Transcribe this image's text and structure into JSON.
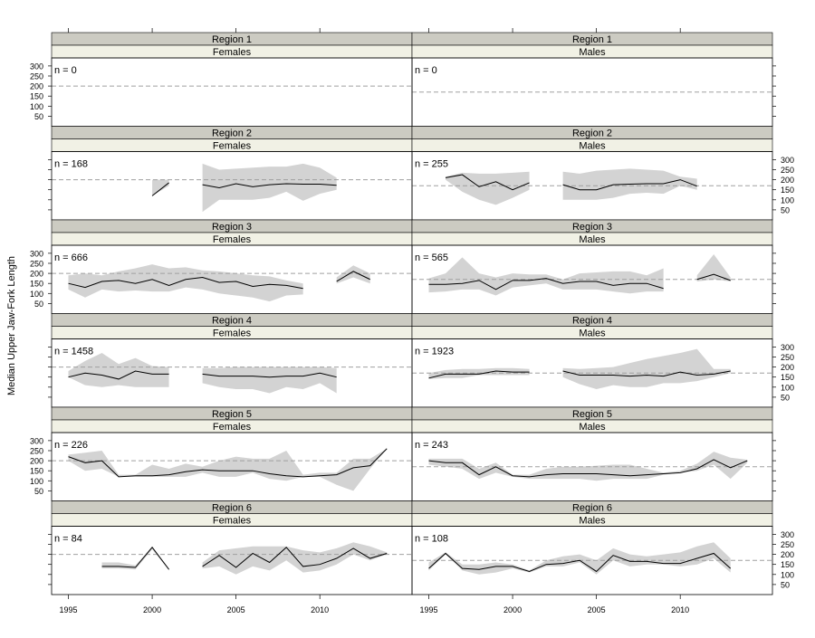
{
  "chart_data": {
    "type": "line",
    "ylabel": "Median Upper Jaw-Fork Length",
    "x_ticks": [
      1995,
      2000,
      2005,
      2010
    ],
    "y_ticks": [
      50,
      100,
      150,
      200,
      250,
      300
    ],
    "xlim": [
      1994,
      2015.5
    ],
    "ylim": [
      0,
      340
    ],
    "colors": {
      "strip_region": "#cccbc2",
      "strip_sex": "#f1f1e5",
      "band": "#d3d3d3",
      "line": "#000000",
      "reference": "#a0a0a0",
      "frame": "#000000"
    },
    "panels": [
      {
        "region": "Region 1",
        "sex": "Females",
        "n_label": "n = 0",
        "reference": 200,
        "segments": []
      },
      {
        "region": "Region 1",
        "sex": "Males",
        "n_label": "n = 0",
        "reference": 170,
        "segments": []
      },
      {
        "region": "Region 2",
        "sex": "Females",
        "n_label": "n = 168",
        "reference": 200,
        "segments": [
          {
            "x": [
              2000,
              2001
            ],
            "y": [
              120,
              185
            ],
            "lo": [
              120,
              170
            ],
            "hi": [
              200,
              200
            ]
          },
          {
            "x": [
              2003,
              2004,
              2005,
              2006,
              2007,
              2008,
              2009,
              2010,
              2011
            ],
            "y": [
              175,
              160,
              180,
              165,
              175,
              180,
              178,
              178,
              172
            ],
            "lo": [
              40,
              100,
              100,
              100,
              110,
              140,
              95,
              130,
              150
            ],
            "hi": [
              280,
              250,
              255,
              260,
              265,
              265,
              280,
              260,
              210
            ]
          }
        ]
      },
      {
        "region": "Region 2",
        "sex": "Males",
        "n_label": "n = 255",
        "reference": 170,
        "segments": [
          {
            "x": [
              1996,
              1997,
              1998,
              1999,
              2000,
              2001
            ],
            "y": [
              210,
              225,
              165,
              190,
              150,
              185
            ],
            "lo": [
              200,
              140,
              100,
              75,
              110,
              150
            ],
            "hi": [
              215,
              235,
              230,
              230,
              235,
              240
            ]
          },
          {
            "x": [
              2003,
              2004,
              2005,
              2006,
              2007,
              2008,
              2009,
              2010,
              2011
            ],
            "y": [
              175,
              150,
              150,
              175,
              178,
              180,
              180,
              200,
              168
            ],
            "lo": [
              100,
              100,
              100,
              110,
              130,
              135,
              130,
              170,
              150
            ],
            "hi": [
              240,
              230,
              245,
              250,
              255,
              250,
              245,
              215,
              205
            ]
          }
        ]
      },
      {
        "region": "Region 3",
        "sex": "Females",
        "n_label": "n = 666",
        "reference": 200,
        "segments": [
          {
            "x": [
              1995,
              1996,
              1997,
              1998,
              1999,
              2000,
              2001,
              2002,
              2003,
              2004,
              2005,
              2006,
              2007,
              2008,
              2009
            ],
            "y": [
              150,
              130,
              160,
              165,
              150,
              170,
              140,
              170,
              180,
              155,
              160,
              135,
              145,
              140,
              125
            ],
            "lo": [
              120,
              80,
              120,
              110,
              115,
              110,
              110,
              130,
              120,
              100,
              90,
              80,
              60,
              90,
              95
            ],
            "hi": [
              190,
              200,
              190,
              210,
              225,
              245,
              225,
              230,
              215,
              210,
              200,
              190,
              185,
              165,
              150
            ]
          },
          {
            "x": [
              2011,
              2012,
              2013
            ],
            "y": [
              160,
              210,
              170
            ],
            "lo": [
              150,
              180,
              150
            ],
            "hi": [
              180,
              240,
              200
            ]
          }
        ]
      },
      {
        "region": "Region 3",
        "sex": "Males",
        "n_label": "n = 565",
        "reference": 170,
        "segments": [
          {
            "x": [
              1995,
              1996,
              1997,
              1998,
              1999,
              2000,
              2001,
              2002,
              2003,
              2004,
              2005,
              2006,
              2007,
              2008,
              2009
            ],
            "y": [
              145,
              145,
              150,
              165,
              120,
              165,
              165,
              175,
              150,
              160,
              160,
              140,
              150,
              150,
              125
            ],
            "lo": [
              105,
              110,
              120,
              120,
              90,
              130,
              140,
              150,
              120,
              120,
              120,
              110,
              100,
              110,
              110
            ],
            "hi": [
              175,
              200,
              280,
              200,
              180,
              200,
              195,
              195,
              170,
              200,
              205,
              210,
              210,
              190,
              225
            ]
          },
          {
            "x": [
              2011,
              2012,
              2013
            ],
            "y": [
              170,
              195,
              165
            ],
            "lo": [
              160,
              170,
              160
            ],
            "hi": [
              190,
              295,
              180
            ]
          }
        ]
      },
      {
        "region": "Region 4",
        "sex": "Females",
        "n_label": "n = 1458",
        "reference": 200,
        "segments": [
          {
            "x": [
              1995,
              1996,
              1997,
              1998,
              1999,
              2000,
              2001
            ],
            "y": [
              150,
              170,
              160,
              140,
              180,
              165,
              165
            ],
            "lo": [
              150,
              110,
              100,
              110,
              100,
              100,
              100
            ],
            "hi": [
              180,
              230,
              270,
              215,
              245,
              205,
              200
            ]
          },
          {
            "x": [
              2003,
              2004,
              2005,
              2006,
              2007,
              2008,
              2009,
              2010,
              2011
            ],
            "y": [
              165,
              155,
              155,
              155,
              150,
              155,
              155,
              170,
              150
            ],
            "lo": [
              120,
              100,
              90,
              90,
              70,
              100,
              90,
              120,
              70
            ],
            "hi": [
              195,
              195,
              200,
              200,
              200,
              200,
              200,
              200,
              195
            ]
          }
        ]
      },
      {
        "region": "Region 4",
        "sex": "Males",
        "n_label": "n = 1923",
        "reference": 170,
        "segments": [
          {
            "x": [
              1995,
              1996,
              1997,
              1998,
              1999,
              2000,
              2001
            ],
            "y": [
              145,
              165,
              165,
              165,
              180,
              175,
              175
            ],
            "lo": [
              140,
              145,
              145,
              160,
              160,
              160,
              160
            ],
            "hi": [
              170,
              185,
              190,
              190,
              195,
              195,
              190
            ]
          },
          {
            "x": [
              2003,
              2004,
              2005,
              2006,
              2007,
              2008,
              2009,
              2010,
              2011,
              2012,
              2013
            ],
            "y": [
              180,
              160,
              160,
              160,
              155,
              160,
              155,
              175,
              160,
              165,
              180
            ],
            "lo": [
              150,
              115,
              90,
              110,
              100,
              100,
              120,
              120,
              130,
              150,
              170
            ],
            "hi": [
              195,
              190,
              195,
              200,
              220,
              240,
              255,
              270,
              290,
              190,
              190
            ]
          }
        ]
      },
      {
        "region": "Region 5",
        "sex": "Females",
        "n_label": "n = 226",
        "reference": 200,
        "segments": [
          {
            "x": [
              1995,
              1996,
              1997,
              1998,
              1999,
              2000,
              2001,
              2002,
              2003,
              2004,
              2005,
              2006,
              2007,
              2008,
              2009,
              2010,
              2011,
              2012,
              2013,
              2014
            ],
            "y": [
              220,
              190,
              200,
              120,
              125,
              125,
              130,
              145,
              155,
              150,
              150,
              150,
              135,
              125,
              120,
              125,
              130,
              165,
              175,
              260
            ],
            "lo": [
              200,
              150,
              160,
              120,
              120,
              120,
              120,
              120,
              140,
              120,
              120,
              140,
              110,
              100,
              120,
              120,
              80,
              50,
              160,
              260
            ],
            "hi": [
              230,
              240,
              250,
              130,
              130,
              180,
              160,
              185,
              170,
              200,
              220,
              210,
              210,
              250,
              130,
              140,
              140,
              210,
              210,
              260
            ]
          }
        ]
      },
      {
        "region": "Region 5",
        "sex": "Males",
        "n_label": "n = 243",
        "reference": 170,
        "segments": [
          {
            "x": [
              1995,
              1996,
              1997,
              1998,
              1999,
              2000,
              2001,
              2002,
              2003,
              2004,
              2005,
              2006,
              2007,
              2008,
              2009,
              2010,
              2011,
              2012,
              2013,
              2014
            ],
            "y": [
              200,
              190,
              190,
              130,
              170,
              125,
              120,
              130,
              135,
              135,
              135,
              130,
              125,
              130,
              135,
              140,
              160,
              205,
              165,
              200
            ],
            "lo": [
              180,
              170,
              160,
              110,
              140,
              120,
              110,
              110,
              110,
              110,
              100,
              110,
              110,
              110,
              130,
              140,
              150,
              180,
              110,
              190
            ],
            "hi": [
              210,
              210,
              210,
              160,
              190,
              130,
              130,
              160,
              170,
              170,
              175,
              180,
              180,
              160,
              140,
              150,
              185,
              245,
              215,
              205
            ]
          }
        ]
      },
      {
        "region": "Region 6",
        "sex": "Females",
        "n_label": "n = 84",
        "reference": 200,
        "segments": [
          {
            "x": [
              1997,
              1998,
              1999,
              2000,
              2001
            ],
            "y": [
              140,
              140,
              135,
              235,
              125
            ],
            "lo": [
              130,
              130,
              125,
              225,
              120
            ],
            "hi": [
              160,
              160,
              145,
              240,
              130
            ]
          },
          {
            "x": [
              2003,
              2004,
              2005,
              2006,
              2007,
              2008,
              2009,
              2010,
              2011,
              2012,
              2013,
              2014
            ],
            "y": [
              140,
              195,
              135,
              205,
              160,
              235,
              140,
              150,
              180,
              230,
              180,
              205
            ],
            "lo": [
              130,
              140,
              100,
              140,
              120,
              170,
              110,
              120,
              150,
              200,
              170,
              200
            ],
            "hi": [
              160,
              220,
              230,
              240,
              240,
              240,
              220,
              210,
              230,
              260,
              240,
              210
            ]
          }
        ]
      },
      {
        "region": "Region 6",
        "sex": "Males",
        "n_label": "n = 108",
        "reference": 170,
        "segments": [
          {
            "x": [
              1995,
              1996,
              1997,
              1998,
              1999,
              2000,
              2001,
              2002,
              2003,
              2004,
              2005,
              2006,
              2007,
              2008,
              2009,
              2010,
              2011,
              2012,
              2013
            ],
            "y": [
              130,
              205,
              130,
              125,
              140,
              140,
              115,
              150,
              155,
              170,
              115,
              195,
              165,
              165,
              155,
              155,
              180,
              205,
              130
            ],
            "lo": [
              120,
              200,
              120,
              100,
              110,
              130,
              110,
              140,
              140,
              160,
              100,
              170,
              140,
              150,
              150,
              140,
              150,
              180,
              110
            ],
            "hi": [
              160,
              210,
              150,
              150,
              160,
              150,
              120,
              170,
              190,
              200,
              170,
              230,
              200,
              190,
              200,
              210,
              240,
              260,
              180
            ]
          }
        ]
      }
    ]
  }
}
